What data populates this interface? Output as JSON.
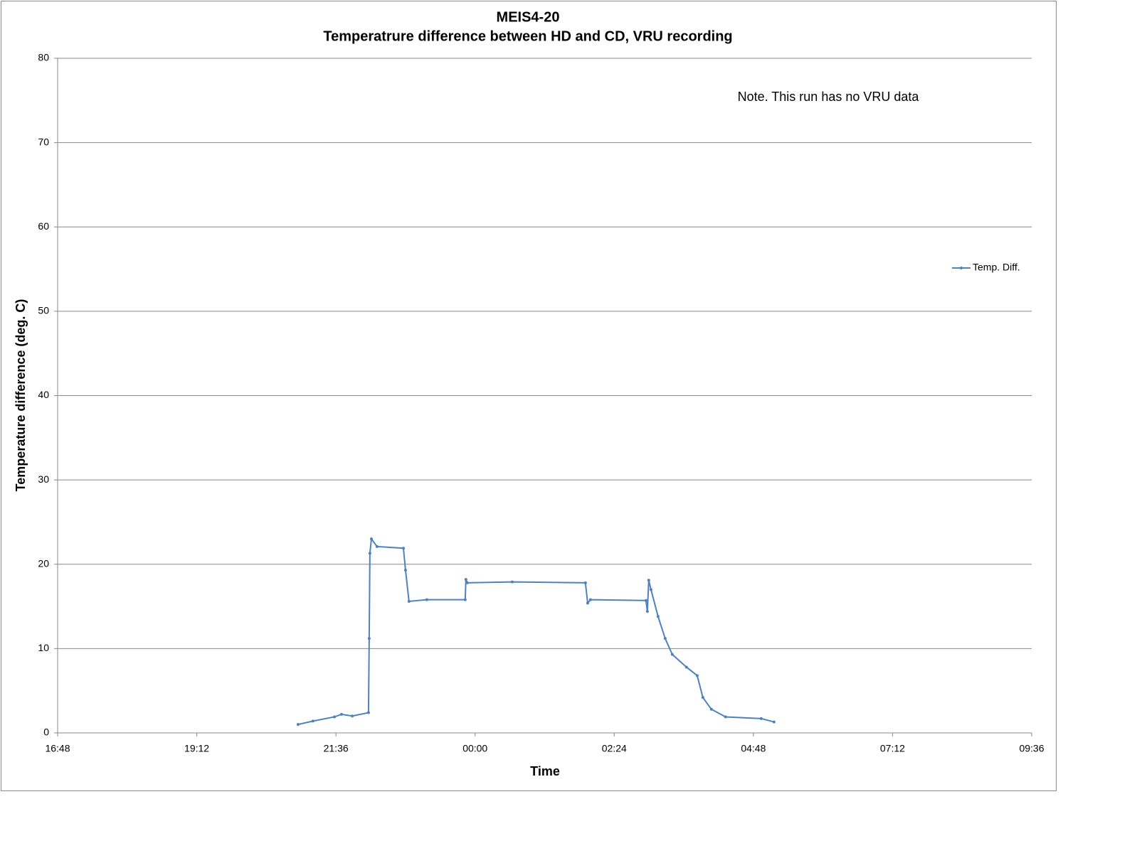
{
  "chart_data": {
    "type": "line",
    "title": "MEIS4-20",
    "subtitle": "Temperatrure difference between HD and CD, VRU recording",
    "annotation": "Note. This run has no VRU data",
    "x_label": "Time",
    "y_label": "Temperature difference (deg. C)",
    "x": [
      0.8728,
      0.8835,
      0.8989,
      0.904,
      0.9117,
      0.9234,
      0.9239,
      0.9244,
      0.9255,
      0.9295,
      0.9485,
      0.95,
      0.9525,
      0.9653,
      0.9929,
      0.9934,
      0.9944,
      1.0267,
      1.0793,
      1.0809,
      1.0829,
      1.1228,
      1.1238,
      1.1248,
      1.1264,
      1.1315,
      1.1366,
      1.1417,
      1.1519,
      1.1596,
      1.1637,
      1.1698,
      1.18,
      1.2056,
      1.2148
    ],
    "series": [
      {
        "name": "Temp. Diff.",
        "color": "#4f81bd",
        "values": [
          1.0,
          1.4,
          1.9,
          2.2,
          2.0,
          2.4,
          11.2,
          21.3,
          23.0,
          22.1,
          21.9,
          19.3,
          15.6,
          15.8,
          15.8,
          18.2,
          17.8,
          17.9,
          17.8,
          15.4,
          15.8,
          15.7,
          14.4,
          18.1,
          17.0,
          13.8,
          11.2,
          9.3,
          7.8,
          6.8,
          4.2,
          2.8,
          1.9,
          1.7,
          1.3
        ]
      }
    ],
    "xlim": [
      0.7,
      1.4
    ],
    "xticks": [
      {
        "value": 0.7,
        "label": "16:48"
      },
      {
        "value": 0.8,
        "label": "19:12"
      },
      {
        "value": 0.9,
        "label": "21:36"
      },
      {
        "value": 1.0,
        "label": "00:00"
      },
      {
        "value": 1.1,
        "label": "02:24"
      },
      {
        "value": 1.2,
        "label": "04:48"
      },
      {
        "value": 1.3,
        "label": "07:12"
      },
      {
        "value": 1.4,
        "label": "09:36"
      }
    ],
    "ylim": [
      0,
      80
    ],
    "yticks": [
      0,
      10,
      20,
      30,
      40,
      50,
      60,
      70,
      80
    ],
    "grid": true,
    "legend": "right"
  }
}
